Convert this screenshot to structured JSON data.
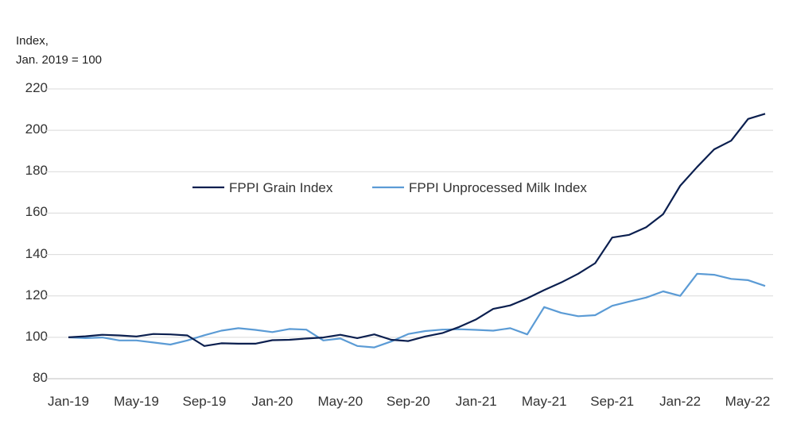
{
  "chart_data": {
    "type": "line",
    "ylabel_lines": [
      "Index,",
      "Jan. 2019 = 100"
    ],
    "ylim": [
      80,
      220
    ],
    "yticks": [
      80,
      100,
      120,
      140,
      160,
      180,
      200,
      220
    ],
    "grid": true,
    "legend_position": "top-center",
    "x_tick_labels": [
      "Jan-19",
      "May-19",
      "Sep-19",
      "Jan-20",
      "May-20",
      "Sep-20",
      "Jan-21",
      "May-21",
      "Sep-21",
      "Jan-22",
      "May-22"
    ],
    "x_tick_indices": [
      0,
      4,
      8,
      12,
      16,
      20,
      24,
      28,
      32,
      36,
      40
    ],
    "x": [
      "Jan-19",
      "Feb-19",
      "Mar-19",
      "Apr-19",
      "May-19",
      "Jun-19",
      "Jul-19",
      "Aug-19",
      "Sep-19",
      "Oct-19",
      "Nov-19",
      "Dec-19",
      "Jan-20",
      "Feb-20",
      "Mar-20",
      "Apr-20",
      "May-20",
      "Jun-20",
      "Jul-20",
      "Aug-20",
      "Sep-20",
      "Oct-20",
      "Nov-20",
      "Dec-20",
      "Jan-21",
      "Feb-21",
      "Mar-21",
      "Apr-21",
      "May-21",
      "Jun-21",
      "Jul-21",
      "Aug-21",
      "Sep-21",
      "Oct-21",
      "Nov-21",
      "Dec-21",
      "Jan-22",
      "Feb-22",
      "Mar-22",
      "Apr-22",
      "May-22",
      "Jun-22"
    ],
    "series": [
      {
        "name": "FPPI Grain Index",
        "color": "#0b1f4f",
        "values": [
          100.0,
          100.5,
          101.2,
          100.9,
          100.4,
          101.6,
          101.4,
          100.9,
          95.8,
          97.1,
          96.9,
          96.9,
          98.6,
          98.8,
          99.4,
          99.9,
          101.2,
          99.6,
          101.4,
          98.8,
          98.2,
          100.4,
          102.0,
          105.0,
          108.7,
          113.7,
          115.4,
          118.8,
          122.8,
          126.5,
          130.7,
          135.8,
          148.2,
          149.5,
          153.2,
          159.5,
          173.2,
          182.3,
          190.8,
          195.0,
          205.5,
          208.0
        ]
      },
      {
        "name": "FPPI Unprocessed Milk Index",
        "color": "#5b9bd5",
        "values": [
          100.0,
          99.6,
          99.9,
          98.5,
          98.5,
          97.5,
          96.5,
          98.5,
          101.0,
          103.2,
          104.4,
          103.6,
          102.5,
          104.0,
          103.7,
          98.5,
          99.4,
          95.8,
          95.1,
          98.0,
          101.6,
          103.0,
          103.7,
          103.9,
          103.6,
          103.2,
          104.4,
          101.4,
          114.6,
          111.8,
          110.2,
          110.7,
          115.2,
          117.3,
          119.2,
          122.2,
          120.0,
          130.7,
          130.2,
          128.2,
          127.6,
          124.8
        ]
      }
    ]
  }
}
